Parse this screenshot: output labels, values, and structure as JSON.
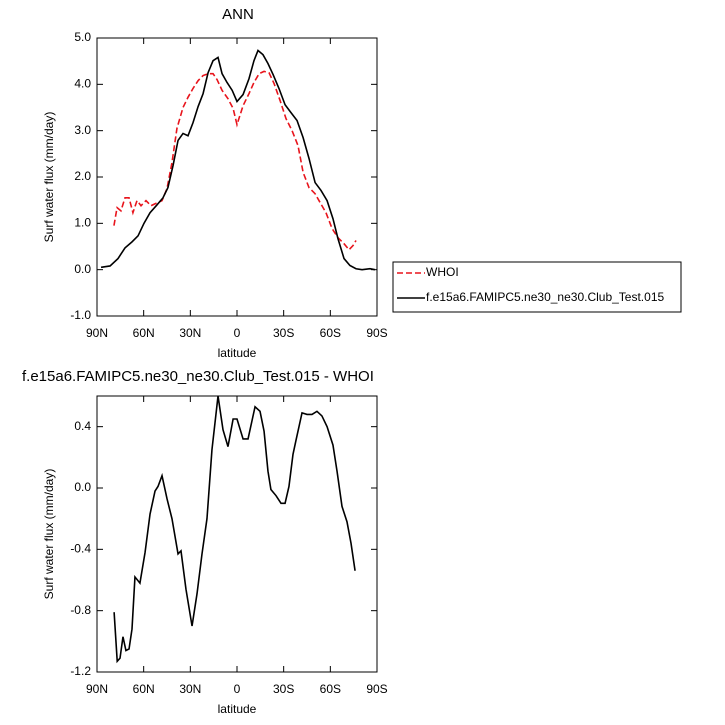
{
  "chart_data": [
    {
      "type": "line",
      "title": "ANN",
      "xlabel": "latitude",
      "ylabel": "Surf water flux (mm/day)",
      "xlim": [
        90,
        -90
      ],
      "xticks": [
        {
          "value": 90,
          "label": "90N"
        },
        {
          "value": 60,
          "label": "60N"
        },
        {
          "value": 30,
          "label": "30N"
        },
        0,
        {
          "value": -30,
          "label": "30S"
        },
        {
          "value": -60,
          "label": "60S"
        },
        {
          "value": -90,
          "label": "90S"
        }
      ],
      "ylim": [
        -1,
        5
      ],
      "yticks": [
        {
          "value": -1,
          "label": "-1.0"
        },
        {
          "value": 0,
          "label": "0.0"
        },
        {
          "value": 1,
          "label": "1.0"
        },
        {
          "value": 2,
          "label": "2.0"
        },
        {
          "value": 3,
          "label": "3.0"
        },
        {
          "value": 4,
          "label": "4.0"
        },
        {
          "value": 5,
          "label": "5.0"
        }
      ],
      "legend": "right",
      "series": [
        {
          "name": "WHOI",
          "color": "#e8141c",
          "line_style": "dashed",
          "x": [
            79.1,
            77.1,
            74.6,
            72,
            69.4,
            66.9,
            64.3,
            61.7,
            58.5,
            55.3,
            52.1,
            48.2,
            45,
            41.8,
            38.6,
            34.7,
            31.5,
            28.3,
            25,
            21.8,
            18.6,
            15.4,
            12.8,
            9.6,
            5.8,
            2.5,
            0,
            -3.9,
            -7.7,
            -10.9,
            -14.2,
            -17.4,
            -20.6,
            -23.8,
            -27.7,
            -31.5,
            -35.4,
            -39.2,
            -42.5,
            -46.3,
            -50.2,
            -53.4,
            -57.2,
            -61.1,
            -64.9,
            -68.8,
            -72,
            -74.6,
            -76.5
          ],
          "values": [
            0.95,
            1.34,
            1.27,
            1.55,
            1.55,
            1.23,
            1.49,
            1.38,
            1.49,
            1.38,
            1.43,
            1.49,
            1.75,
            2.31,
            3.05,
            3.5,
            3.72,
            3.91,
            4.08,
            4.19,
            4.23,
            4.23,
            4.1,
            3.87,
            3.69,
            3.48,
            3.13,
            3.54,
            3.8,
            4.04,
            4.23,
            4.28,
            4.25,
            4.02,
            3.65,
            3.26,
            3.0,
            2.68,
            2.1,
            1.77,
            1.64,
            1.45,
            1.23,
            0.89,
            0.69,
            0.56,
            0.43,
            0.52,
            0.63
          ]
        },
        {
          "name": "f.e15a6.FAMIPC5.ne30_ne30.Club_Test.015",
          "color": "#000000",
          "line_style": "solid",
          "x": [
            87.4,
            81.6,
            76.5,
            72,
            67.5,
            63.6,
            59.8,
            55.9,
            51.4,
            47.6,
            44.4,
            41.1,
            37.9,
            34.7,
            31.5,
            28.3,
            25,
            21.8,
            18.6,
            15.4,
            12.2,
            9.6,
            6.4,
            3.1,
            0,
            -3.9,
            -7.7,
            -10.9,
            -13.5,
            -16.7,
            -19.9,
            -23.2,
            -27,
            -30.9,
            -34.7,
            -38.6,
            -42.5,
            -46.3,
            -50.2,
            -54,
            -57.9,
            -61.7,
            -64.9,
            -68.8,
            -72.6,
            -76.5,
            -80.4,
            -85.5,
            -88.7
          ],
          "values": [
            0.05,
            0.08,
            0.24,
            0.47,
            0.6,
            0.73,
            1.0,
            1.23,
            1.4,
            1.55,
            1.77,
            2.25,
            2.79,
            2.94,
            2.89,
            3.17,
            3.52,
            3.8,
            4.25,
            4.51,
            4.58,
            4.23,
            4.04,
            3.87,
            3.63,
            3.78,
            4.12,
            4.51,
            4.73,
            4.64,
            4.45,
            4.21,
            3.91,
            3.56,
            3.39,
            3.22,
            2.85,
            2.4,
            1.88,
            1.71,
            1.49,
            1.1,
            0.67,
            0.24,
            0.09,
            0.02,
            0.0,
            0.02,
            0.0
          ]
        }
      ]
    },
    {
      "type": "line",
      "title": "f.e15a6.FAMIPC5.ne30_ne30.Club_Test.015 - WHOI",
      "xlabel": "latitude",
      "ylabel": "Surf water flux (mm/day)",
      "xlim": [
        90,
        -90
      ],
      "xticks": [
        {
          "value": 90,
          "label": "90N"
        },
        {
          "value": 60,
          "label": "60N"
        },
        {
          "value": 30,
          "label": "30N"
        },
        0,
        {
          "value": -30,
          "label": "30S"
        },
        {
          "value": -60,
          "label": "60S"
        },
        {
          "value": -90,
          "label": "90S"
        }
      ],
      "ylim": [
        -1.2,
        0.6
      ],
      "yticks": [
        -1.2,
        -0.8,
        -0.4,
        {
          "value": 0,
          "label": "0.0"
        },
        0.4
      ],
      "series": [
        {
          "color": "#000000",
          "line_style": "solid",
          "x": [
            79,
            77,
            75.2,
            73.3,
            71.4,
            69.4,
            67.5,
            65.6,
            62.4,
            59.1,
            55.9,
            52.7,
            50.8,
            48.2,
            45,
            41.8,
            37.9,
            36,
            32.8,
            28.9,
            25.7,
            22.5,
            19.3,
            16.1,
            12.2,
            9,
            5.8,
            2.5,
            0,
            -3.9,
            -7.1,
            -11.6,
            -14.8,
            -17.4,
            -19.9,
            -21.8,
            -25.1,
            -28.3,
            -30.9,
            -33.4,
            -36,
            -37.9,
            -41.8,
            -45,
            -48.2,
            -51.4,
            -54.6,
            -57.9,
            -61.7,
            -64.3,
            -67.5,
            -70.7,
            -73.3,
            -75.9
          ],
          "values": [
            -0.81,
            -1.13,
            -1.11,
            -0.97,
            -1.06,
            -1.05,
            -0.92,
            -0.58,
            -0.62,
            -0.42,
            -0.17,
            -0.02,
            0.01,
            0.08,
            -0.07,
            -0.2,
            -0.43,
            -0.41,
            -0.66,
            -0.9,
            -0.69,
            -0.43,
            -0.2,
            0.25,
            0.6,
            0.38,
            0.27,
            0.45,
            0.45,
            0.32,
            0.32,
            0.53,
            0.5,
            0.37,
            0.11,
            -0.01,
            -0.05,
            -0.1,
            -0.1,
            0.01,
            0.22,
            0.31,
            0.49,
            0.48,
            0.48,
            0.5,
            0.47,
            0.4,
            0.28,
            0.11,
            -0.12,
            -0.22,
            -0.36,
            -0.54
          ]
        }
      ]
    }
  ]
}
